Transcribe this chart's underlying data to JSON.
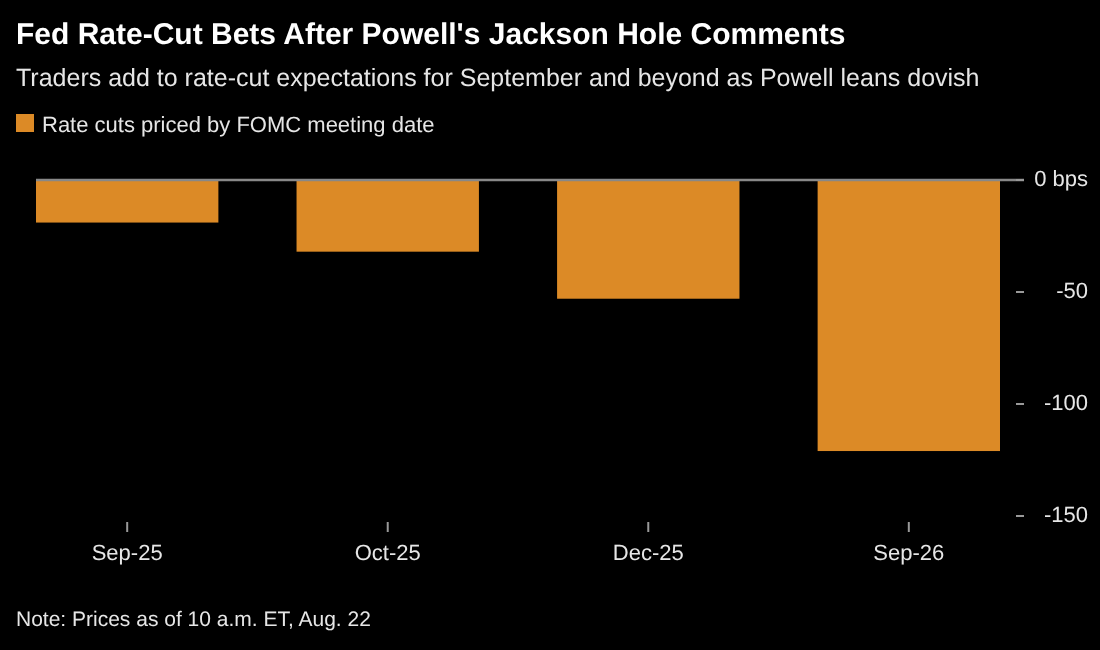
{
  "chart_data": {
    "type": "bar",
    "title": "Fed Rate-Cut Bets After Powell's Jackson Hole Comments",
    "subtitle": "Traders add to rate-cut expectations for September and beyond as Powell leans dovish",
    "categories": [
      "Sep-25",
      "Oct-25",
      "Dec-25",
      "Sep-26"
    ],
    "series": [
      {
        "name": "Rate cuts priced by FOMC meeting date",
        "color": "#dc8a26",
        "values": [
          -19,
          -32,
          -53,
          -121
        ]
      }
    ],
    "ylim": [
      -150,
      0
    ],
    "yticks": [
      {
        "value": 0,
        "label": "0 bps"
      },
      -50,
      -100,
      -150
    ],
    "legend": "top left",
    "annotations": [
      "Note: Prices as of 10 a.m. ET, Aug. 22"
    ]
  }
}
